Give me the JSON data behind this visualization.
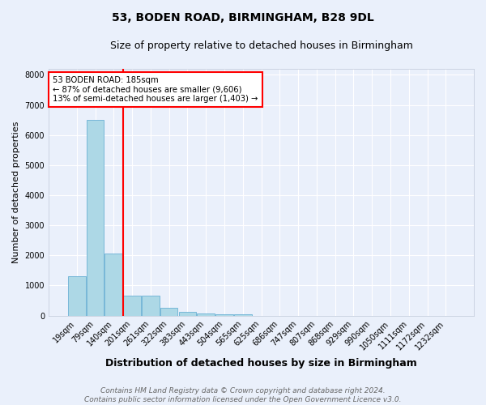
{
  "title": "53, BODEN ROAD, BIRMINGHAM, B28 9DL",
  "subtitle": "Size of property relative to detached houses in Birmingham",
  "xlabel": "Distribution of detached houses by size in Birmingham",
  "ylabel": "Number of detached properties",
  "categories": [
    "19sqm",
    "79sqm",
    "140sqm",
    "201sqm",
    "261sqm",
    "322sqm",
    "383sqm",
    "443sqm",
    "504sqm",
    "565sqm",
    "625sqm",
    "686sqm",
    "747sqm",
    "807sqm",
    "868sqm",
    "929sqm",
    "990sqm",
    "1050sqm",
    "1111sqm",
    "1172sqm",
    "1232sqm"
  ],
  "values": [
    1300,
    6500,
    2070,
    670,
    670,
    270,
    120,
    80,
    50,
    50,
    0,
    0,
    0,
    0,
    0,
    0,
    0,
    0,
    0,
    0,
    0
  ],
  "bar_color": "#add8e6",
  "bar_edge_color": "#6ab0d4",
  "vline_color": "red",
  "annotation_text": "53 BODEN ROAD: 185sqm\n← 87% of detached houses are smaller (9,606)\n13% of semi-detached houses are larger (1,403) →",
  "annotation_box_color": "white",
  "annotation_box_edgecolor": "red",
  "ylim": [
    0,
    8200
  ],
  "yticks": [
    0,
    1000,
    2000,
    3000,
    4000,
    5000,
    6000,
    7000,
    8000
  ],
  "background_color": "#eaf0fb",
  "grid_color": "white",
  "footer_line1": "Contains HM Land Registry data © Crown copyright and database right 2024.",
  "footer_line2": "Contains public sector information licensed under the Open Government Licence v3.0.",
  "title_fontsize": 10,
  "subtitle_fontsize": 9,
  "xlabel_fontsize": 9,
  "ylabel_fontsize": 8,
  "tick_fontsize": 7,
  "footer_fontsize": 6.5
}
